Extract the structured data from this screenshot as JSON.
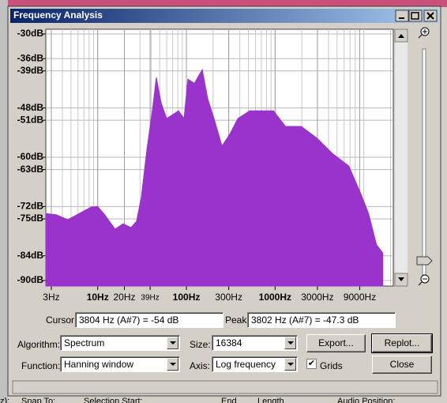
{
  "window": {
    "title": "Frequency Analysis"
  },
  "chart_data": {
    "type": "area",
    "x": [
      2.6,
      3.4,
      4.6,
      6.2,
      8.5,
      10,
      12,
      15.7,
      19.3,
      23.7,
      27.4,
      31,
      35.8,
      41.3,
      45.8,
      51.8,
      59.8,
      70.5,
      81.4,
      94,
      104,
      123,
      151,
      174,
      205,
      252,
      310,
      380,
      518,
      705,
      960,
      1306,
      1972,
      2972,
      4487,
      6761,
      9210,
      11320,
      13900,
      16370
    ],
    "values": [
      -73.7,
      -74,
      -75.2,
      -73.7,
      -72.1,
      -72,
      -74,
      -77.5,
      -76.2,
      -77.1,
      -75.6,
      -69.8,
      -58.3,
      -48.7,
      -40.6,
      -46.7,
      -50.6,
      -49.6,
      -48.7,
      -50.6,
      -41,
      -42,
      -38.7,
      -45.8,
      -50.6,
      -57.3,
      -54.3,
      -50.6,
      -48.7,
      -48.7,
      -48.7,
      -52.5,
      -52.5,
      -55.4,
      -59.2,
      -62.1,
      -68.8,
      -73.7,
      -81.3,
      -83.3
    ],
    "color": "#9933cc",
    "log_x": true,
    "grid": true,
    "xlim": [
      2.6,
      21500
    ],
    "ylim": [
      -91.35,
      -28.85
    ],
    "xticks": [
      {
        "value": 3,
        "label": "3Hz"
      },
      {
        "value": 10,
        "label": "10Hz"
      },
      {
        "value": 20,
        "label": "20Hz"
      },
      {
        "value": 39,
        "label": "39Hz"
      },
      {
        "value": 100,
        "label": "100Hz"
      },
      {
        "value": 300,
        "label": "300Hz"
      },
      {
        "value": 1000,
        "label": "1000Hz"
      },
      {
        "value": 3000,
        "label": "3000Hz"
      },
      {
        "value": 9000,
        "label": "9000Hz"
      }
    ],
    "yticks": [
      {
        "value": -30,
        "label": "-30dB"
      },
      {
        "value": -36,
        "label": "-36dB"
      },
      {
        "value": -39,
        "label": "-39dB"
      },
      {
        "value": -48,
        "label": "-48dB"
      },
      {
        "value": -51,
        "label": "-51dB"
      },
      {
        "value": -60,
        "label": "-60dB"
      },
      {
        "value": -63,
        "label": "-63dB"
      },
      {
        "value": -72,
        "label": "-72dB"
      },
      {
        "value": -75,
        "label": "-75dB"
      },
      {
        "value": -84,
        "label": "-84dB"
      },
      {
        "value": -90,
        "label": "-90dB"
      }
    ]
  },
  "cursor": {
    "label": "Cursor:",
    "value": "3804 Hz (A#7) = -54 dB"
  },
  "peak": {
    "label": "Peak:",
    "value": "3802 Hz (A#7) = -47.3 dB"
  },
  "algorithm": {
    "label": "Algorithm:",
    "value": "Spectrum"
  },
  "size": {
    "label": "Size:",
    "value": "16384"
  },
  "function": {
    "label": "Function:",
    "value": "Hanning window"
  },
  "axis": {
    "label": "Axis:",
    "value": "Log frequency"
  },
  "grids": {
    "label": "Grids",
    "checked": true
  },
  "buttons": {
    "export": "Export...",
    "replot": "Replot...",
    "close": "Close"
  },
  "background": {
    "left": "z):",
    "snap": "Snap To:",
    "selection_start": "Selection Start:",
    "end": "End",
    "length": "Length",
    "audio_position": "Audio Position:"
  }
}
